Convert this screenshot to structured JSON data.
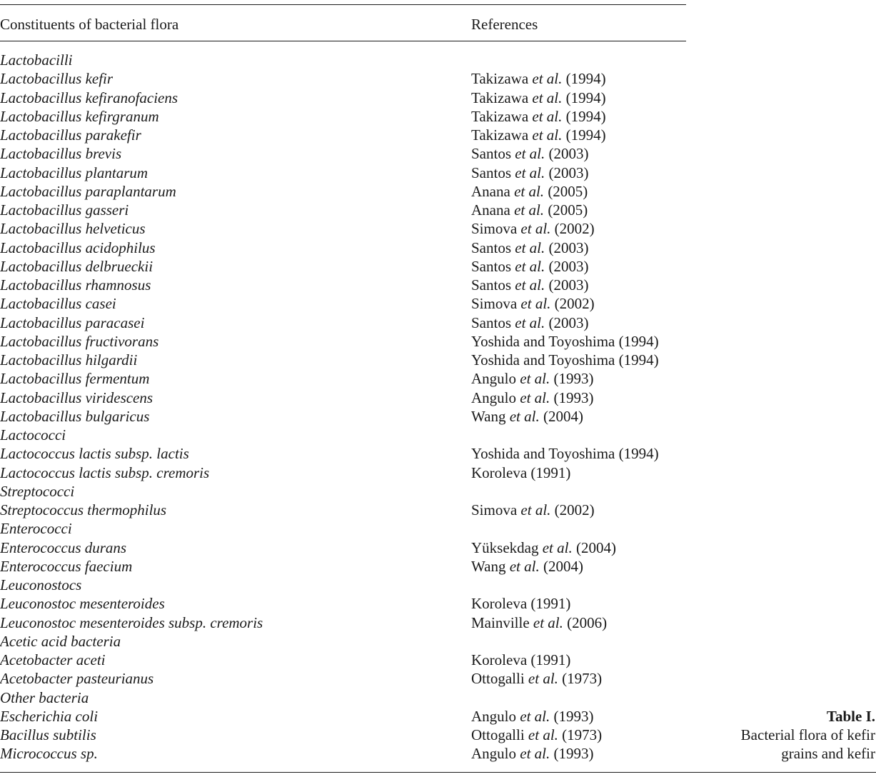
{
  "table": {
    "header": {
      "col1": "Constituents of bacterial flora",
      "col2": "References"
    },
    "rows": [
      {
        "organism": "Lactobacilli",
        "ref_pre": "",
        "ref_etal": "",
        "ref_post": ""
      },
      {
        "organism": "Lactobacillus kefir",
        "ref_pre": "Takizawa ",
        "ref_etal": "et al.",
        "ref_post": " (1994)"
      },
      {
        "organism": "Lactobacillus kefiranofaciens",
        "ref_pre": "Takizawa ",
        "ref_etal": "et al.",
        "ref_post": " (1994)"
      },
      {
        "organism": "Lactobacillus kefirgranum",
        "ref_pre": "Takizawa ",
        "ref_etal": "et al.",
        "ref_post": " (1994)"
      },
      {
        "organism": "Lactobacillus parakefir",
        "ref_pre": "Takizawa ",
        "ref_etal": "et al.",
        "ref_post": " (1994)"
      },
      {
        "organism": "Lactobacillus brevis",
        "ref_pre": "Santos ",
        "ref_etal": "et al.",
        "ref_post": " (2003)"
      },
      {
        "organism": "Lactobacillus plantarum",
        "ref_pre": "Santos ",
        "ref_etal": "et al.",
        "ref_post": " (2003)"
      },
      {
        "organism": "Lactobacillus paraplantarum",
        "ref_pre": "Anana ",
        "ref_etal": "et al.",
        "ref_post": " (2005)"
      },
      {
        "organism": "Lactobacillus gasseri",
        "ref_pre": "Anana ",
        "ref_etal": "et al.",
        "ref_post": " (2005)"
      },
      {
        "organism": "Lactobacillus helveticus",
        "ref_pre": "Simova ",
        "ref_etal": "et al.",
        "ref_post": " (2002)"
      },
      {
        "organism": "Lactobacillus acidophilus",
        "ref_pre": "Santos ",
        "ref_etal": "et al.",
        "ref_post": " (2003)"
      },
      {
        "organism": "Lactobacillus delbrueckii",
        "ref_pre": "Santos ",
        "ref_etal": "et al.",
        "ref_post": " (2003)"
      },
      {
        "organism": "Lactobacillus rhamnosus",
        "ref_pre": "Santos ",
        "ref_etal": "et al.",
        "ref_post": " (2003)"
      },
      {
        "organism": "Lactobacillus casei",
        "ref_pre": "Simova ",
        "ref_etal": "et al.",
        "ref_post": " (2002)"
      },
      {
        "organism": "Lactobacillus paracasei",
        "ref_pre": "Santos ",
        "ref_etal": "et al.",
        "ref_post": " (2003)"
      },
      {
        "organism": "Lactobacillus fructivorans",
        "ref_pre": "Yoshida and Toyoshima (1994)",
        "ref_etal": "",
        "ref_post": ""
      },
      {
        "organism": "Lactobacillus hilgardii",
        "ref_pre": "Yoshida and Toyoshima (1994)",
        "ref_etal": "",
        "ref_post": ""
      },
      {
        "organism": "Lactobacillus fermentum",
        "ref_pre": "Angulo ",
        "ref_etal": "et al.",
        "ref_post": " (1993)"
      },
      {
        "organism": "Lactobacillus viridescens",
        "ref_pre": "Angulo ",
        "ref_etal": "et al.",
        "ref_post": " (1993)"
      },
      {
        "organism": "Lactobacillus bulgaricus",
        "ref_pre": "Wang ",
        "ref_etal": "et al.",
        "ref_post": " (2004)"
      },
      {
        "organism": "Lactococci",
        "ref_pre": "",
        "ref_etal": "",
        "ref_post": ""
      },
      {
        "organism": "Lactococcus lactis subsp. lactis",
        "ref_pre": "Yoshida and Toyoshima (1994)",
        "ref_etal": "",
        "ref_post": ""
      },
      {
        "organism": "Lactococcus lactis subsp. cremoris",
        "ref_pre": "Koroleva (1991)",
        "ref_etal": "",
        "ref_post": ""
      },
      {
        "organism": "Streptococci",
        "ref_pre": "",
        "ref_etal": "",
        "ref_post": ""
      },
      {
        "organism": "Streptococcus thermophilus",
        "ref_pre": "Simova ",
        "ref_etal": "et al.",
        "ref_post": " (2002)"
      },
      {
        "organism": "Enterococci",
        "ref_pre": "",
        "ref_etal": "",
        "ref_post": ""
      },
      {
        "organism": "Enterococcus durans",
        "ref_pre": "Yüksekdag ",
        "ref_etal": "et al.",
        "ref_post": " (2004)"
      },
      {
        "organism": "Enterococcus faecium",
        "ref_pre": "Wang ",
        "ref_etal": "et al.",
        "ref_post": " (2004)"
      },
      {
        "organism": "Leuconostocs",
        "ref_pre": "",
        "ref_etal": "",
        "ref_post": ""
      },
      {
        "organism": "Leuconostoc mesenteroides",
        "ref_pre": "Koroleva (1991)",
        "ref_etal": "",
        "ref_post": ""
      },
      {
        "organism": "Leuconostoc mesenteroides subsp. cremoris",
        "ref_pre": "Mainville ",
        "ref_etal": "et al.",
        "ref_post": " (2006)"
      },
      {
        "organism": "Acetic acid bacteria",
        "ref_pre": "",
        "ref_etal": "",
        "ref_post": ""
      },
      {
        "organism": "Acetobacter aceti",
        "ref_pre": "Koroleva (1991)",
        "ref_etal": "",
        "ref_post": ""
      },
      {
        "organism": "Acetobacter pasteurianus",
        "ref_pre": "Ottogalli ",
        "ref_etal": "et al.",
        "ref_post": " (1973)"
      },
      {
        "organism": "Other bacteria",
        "ref_pre": "",
        "ref_etal": "",
        "ref_post": ""
      },
      {
        "organism": "Escherichia coli",
        "ref_pre": "Angulo ",
        "ref_etal": "et al.",
        "ref_post": " (1993)"
      },
      {
        "organism": "Bacillus subtilis",
        "ref_pre": "Ottogalli ",
        "ref_etal": "et al.",
        "ref_post": " (1973)"
      },
      {
        "organism": "Micrococcus sp.",
        "ref_pre": "Angulo ",
        "ref_etal": "et al.",
        "ref_post": " (1993)"
      }
    ]
  },
  "caption": {
    "label": "Table I.",
    "line1": "Bacterial flora of kefir",
    "line2": "grains and kefir"
  }
}
